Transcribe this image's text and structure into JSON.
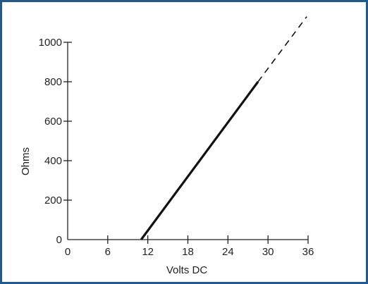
{
  "chart_data": {
    "type": "line",
    "title": "",
    "xlabel": "Volts DC",
    "ylabel": "Ohms",
    "xlim": [
      0,
      36
    ],
    "ylim": [
      0,
      1000
    ],
    "x_ticks": [
      0,
      6,
      12,
      18,
      24,
      30,
      36
    ],
    "y_ticks": [
      0,
      200,
      400,
      600,
      800,
      1000
    ],
    "grid": false,
    "series": [
      {
        "style": "solid",
        "x": [
          11,
          28.5
        ],
        "y": [
          0,
          800
        ]
      },
      {
        "style": "dashed",
        "x": [
          28.5,
          35.8
        ],
        "y": [
          800,
          1130
        ]
      }
    ],
    "colors": {
      "line": "#111111",
      "axis": "#222222",
      "frame": "#1f5a96"
    }
  }
}
